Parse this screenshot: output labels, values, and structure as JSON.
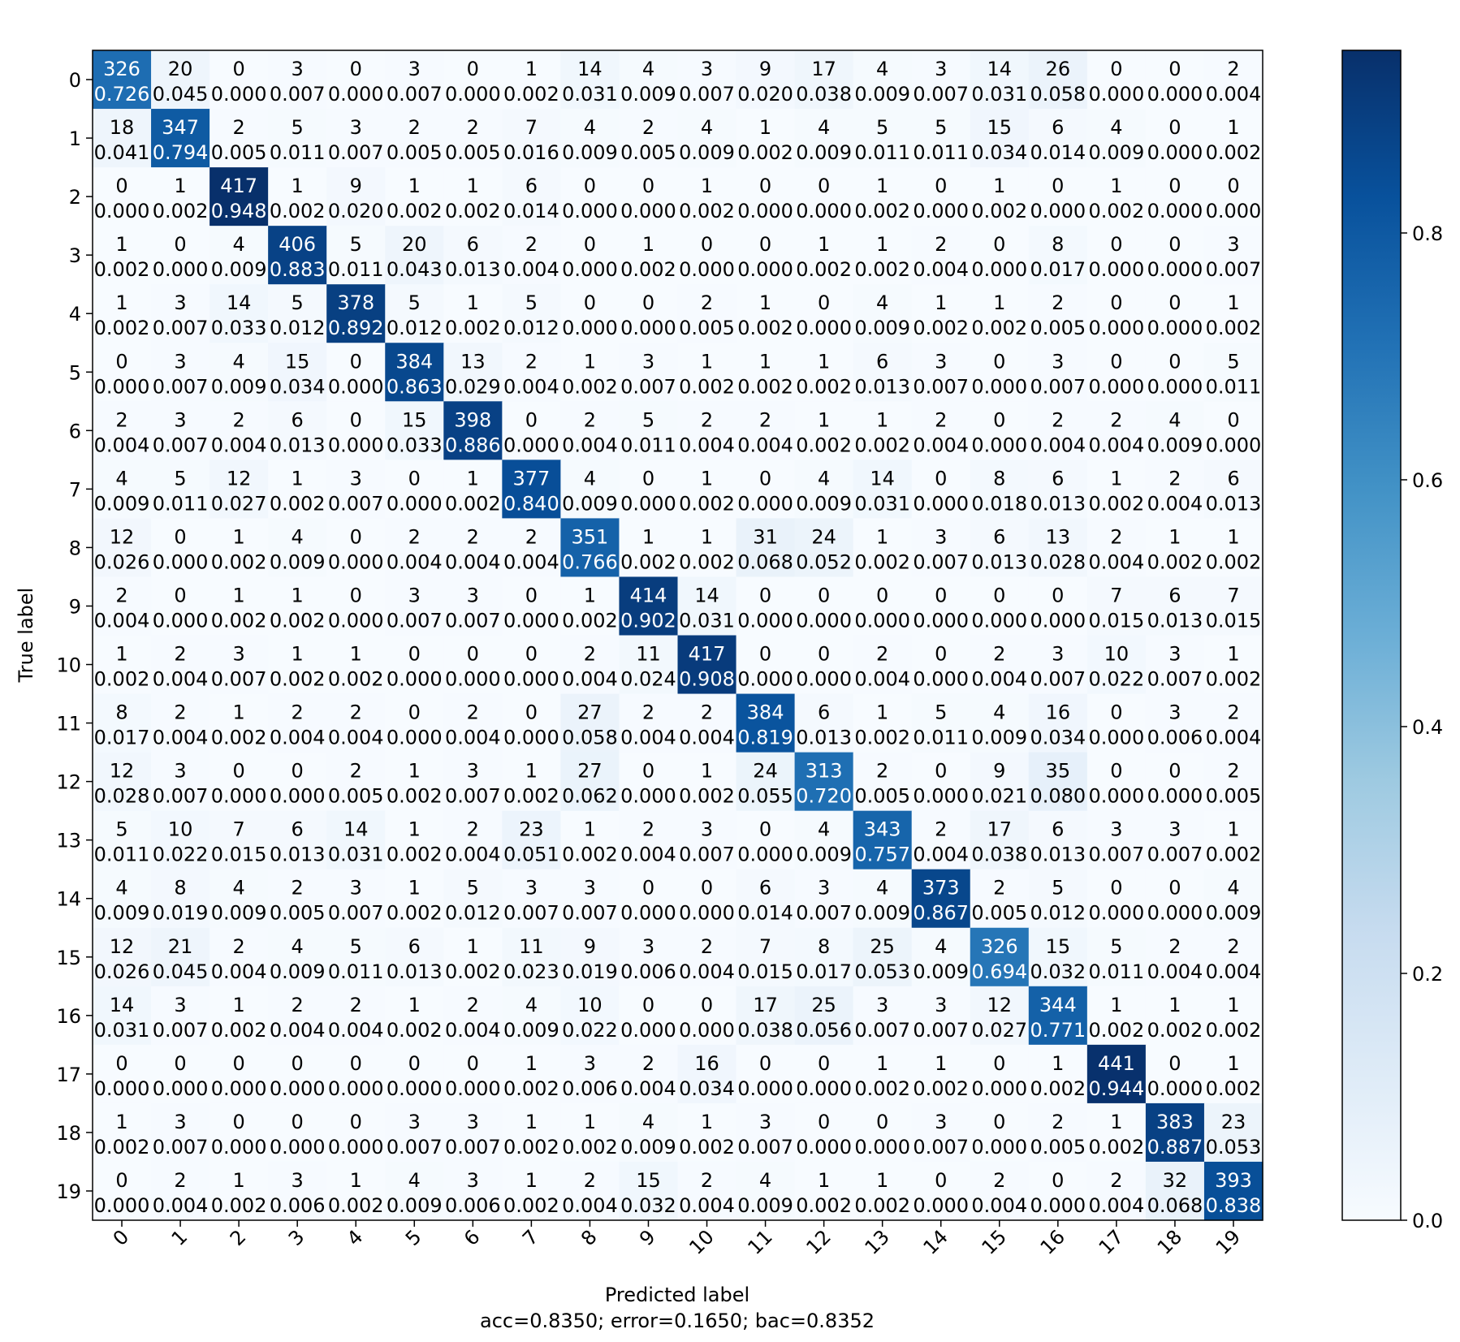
{
  "chart_data": {
    "type": "heatmap",
    "xlabel": "Predicted label",
    "ylabel": "True label",
    "caption": "acc=0.8350; error=0.1650; bac=0.8352",
    "x_categories": [
      "0",
      "1",
      "2",
      "3",
      "4",
      "5",
      "6",
      "7",
      "8",
      "9",
      "10",
      "11",
      "12",
      "13",
      "14",
      "15",
      "16",
      "17",
      "18",
      "19"
    ],
    "y_categories": [
      "0",
      "1",
      "2",
      "3",
      "4",
      "5",
      "6",
      "7",
      "8",
      "9",
      "10",
      "11",
      "12",
      "13",
      "14",
      "15",
      "16",
      "17",
      "18",
      "19"
    ],
    "counts": [
      [
        326,
        20,
        0,
        3,
        0,
        3,
        0,
        1,
        14,
        4,
        3,
        9,
        17,
        4,
        3,
        14,
        26,
        0,
        0,
        2
      ],
      [
        18,
        347,
        2,
        5,
        3,
        2,
        2,
        7,
        4,
        2,
        4,
        1,
        4,
        5,
        5,
        15,
        6,
        4,
        0,
        1
      ],
      [
        0,
        1,
        417,
        1,
        9,
        1,
        1,
        6,
        0,
        0,
        1,
        0,
        0,
        1,
        0,
        1,
        0,
        1,
        0,
        0
      ],
      [
        1,
        0,
        4,
        406,
        5,
        20,
        6,
        2,
        0,
        1,
        0,
        0,
        1,
        1,
        2,
        0,
        8,
        0,
        0,
        3
      ],
      [
        1,
        3,
        14,
        5,
        378,
        5,
        1,
        5,
        0,
        0,
        2,
        1,
        0,
        4,
        1,
        1,
        2,
        0,
        0,
        1
      ],
      [
        0,
        3,
        4,
        15,
        0,
        384,
        13,
        2,
        1,
        3,
        1,
        1,
        1,
        6,
        3,
        0,
        3,
        0,
        0,
        5
      ],
      [
        2,
        3,
        2,
        6,
        0,
        15,
        398,
        0,
        2,
        5,
        2,
        2,
        1,
        1,
        2,
        0,
        2,
        2,
        4,
        0
      ],
      [
        4,
        5,
        12,
        1,
        3,
        0,
        1,
        377,
        4,
        0,
        1,
        0,
        4,
        14,
        0,
        8,
        6,
        1,
        2,
        6
      ],
      [
        12,
        0,
        1,
        4,
        0,
        2,
        2,
        2,
        351,
        1,
        1,
        31,
        24,
        1,
        3,
        6,
        13,
        2,
        1,
        1
      ],
      [
        2,
        0,
        1,
        1,
        0,
        3,
        3,
        0,
        1,
        414,
        14,
        0,
        0,
        0,
        0,
        0,
        0,
        7,
        6,
        7
      ],
      [
        1,
        2,
        3,
        1,
        1,
        0,
        0,
        0,
        2,
        11,
        417,
        0,
        0,
        2,
        0,
        2,
        3,
        10,
        3,
        1
      ],
      [
        8,
        2,
        1,
        2,
        2,
        0,
        2,
        0,
        27,
        2,
        2,
        384,
        6,
        1,
        5,
        4,
        16,
        0,
        3,
        2
      ],
      [
        12,
        3,
        0,
        0,
        2,
        1,
        3,
        1,
        27,
        0,
        1,
        24,
        313,
        2,
        0,
        9,
        35,
        0,
        0,
        2
      ],
      [
        5,
        10,
        7,
        6,
        14,
        1,
        2,
        23,
        1,
        2,
        3,
        0,
        4,
        343,
        2,
        17,
        6,
        3,
        3,
        1
      ],
      [
        4,
        8,
        4,
        2,
        3,
        1,
        5,
        3,
        3,
        0,
        0,
        6,
        3,
        4,
        373,
        2,
        5,
        0,
        0,
        4
      ],
      [
        12,
        21,
        2,
        4,
        5,
        6,
        1,
        11,
        9,
        3,
        2,
        7,
        8,
        25,
        4,
        326,
        15,
        5,
        2,
        2
      ],
      [
        14,
        3,
        1,
        2,
        2,
        1,
        2,
        4,
        10,
        0,
        0,
        17,
        25,
        3,
        3,
        12,
        344,
        1,
        1,
        1
      ],
      [
        0,
        0,
        0,
        0,
        0,
        0,
        0,
        1,
        3,
        2,
        16,
        0,
        0,
        1,
        1,
        0,
        1,
        441,
        0,
        1
      ],
      [
        1,
        3,
        0,
        0,
        0,
        3,
        3,
        1,
        1,
        4,
        1,
        3,
        0,
        0,
        3,
        0,
        2,
        1,
        383,
        23
      ],
      [
        0,
        2,
        1,
        3,
        1,
        4,
        3,
        1,
        2,
        15,
        2,
        4,
        1,
        1,
        0,
        2,
        0,
        2,
        32,
        393
      ]
    ],
    "normalized": [
      [
        "0.726",
        "0.045",
        "0.000",
        "0.007",
        "0.000",
        "0.007",
        "0.000",
        "0.002",
        "0.031",
        "0.009",
        "0.007",
        "0.020",
        "0.038",
        "0.009",
        "0.007",
        "0.031",
        "0.058",
        "0.000",
        "0.000",
        "0.004"
      ],
      [
        "0.041",
        "0.794",
        "0.005",
        "0.011",
        "0.007",
        "0.005",
        "0.005",
        "0.016",
        "0.009",
        "0.005",
        "0.009",
        "0.002",
        "0.009",
        "0.011",
        "0.011",
        "0.034",
        "0.014",
        "0.009",
        "0.000",
        "0.002"
      ],
      [
        "0.000",
        "0.002",
        "0.948",
        "0.002",
        "0.020",
        "0.002",
        "0.002",
        "0.014",
        "0.000",
        "0.000",
        "0.002",
        "0.000",
        "0.000",
        "0.002",
        "0.000",
        "0.002",
        "0.000",
        "0.002",
        "0.000",
        "0.000"
      ],
      [
        "0.002",
        "0.000",
        "0.009",
        "0.883",
        "0.011",
        "0.043",
        "0.013",
        "0.004",
        "0.000",
        "0.002",
        "0.000",
        "0.000",
        "0.002",
        "0.002",
        "0.004",
        "0.000",
        "0.017",
        "0.000",
        "0.000",
        "0.007"
      ],
      [
        "0.002",
        "0.007",
        "0.033",
        "0.012",
        "0.892",
        "0.012",
        "0.002",
        "0.012",
        "0.000",
        "0.000",
        "0.005",
        "0.002",
        "0.000",
        "0.009",
        "0.002",
        "0.002",
        "0.005",
        "0.000",
        "0.000",
        "0.002"
      ],
      [
        "0.000",
        "0.007",
        "0.009",
        "0.034",
        "0.000",
        "0.863",
        "0.029",
        "0.004",
        "0.002",
        "0.007",
        "0.002",
        "0.002",
        "0.002",
        "0.013",
        "0.007",
        "0.000",
        "0.007",
        "0.000",
        "0.000",
        "0.011"
      ],
      [
        "0.004",
        "0.007",
        "0.004",
        "0.013",
        "0.000",
        "0.033",
        "0.886",
        "0.000",
        "0.004",
        "0.011",
        "0.004",
        "0.004",
        "0.002",
        "0.002",
        "0.004",
        "0.000",
        "0.004",
        "0.004",
        "0.009",
        "0.000"
      ],
      [
        "0.009",
        "0.011",
        "0.027",
        "0.002",
        "0.007",
        "0.000",
        "0.002",
        "0.840",
        "0.009",
        "0.000",
        "0.002",
        "0.000",
        "0.009",
        "0.031",
        "0.000",
        "0.018",
        "0.013",
        "0.002",
        "0.004",
        "0.013"
      ],
      [
        "0.026",
        "0.000",
        "0.002",
        "0.009",
        "0.000",
        "0.004",
        "0.004",
        "0.004",
        "0.766",
        "0.002",
        "0.002",
        "0.068",
        "0.052",
        "0.002",
        "0.007",
        "0.013",
        "0.028",
        "0.004",
        "0.002",
        "0.002"
      ],
      [
        "0.004",
        "0.000",
        "0.002",
        "0.002",
        "0.000",
        "0.007",
        "0.007",
        "0.000",
        "0.002",
        "0.902",
        "0.031",
        "0.000",
        "0.000",
        "0.000",
        "0.000",
        "0.000",
        "0.000",
        "0.015",
        "0.013",
        "0.015"
      ],
      [
        "0.002",
        "0.004",
        "0.007",
        "0.002",
        "0.002",
        "0.000",
        "0.000",
        "0.000",
        "0.004",
        "0.024",
        "0.908",
        "0.000",
        "0.000",
        "0.004",
        "0.000",
        "0.004",
        "0.007",
        "0.022",
        "0.007",
        "0.002"
      ],
      [
        "0.017",
        "0.004",
        "0.002",
        "0.004",
        "0.004",
        "0.000",
        "0.004",
        "0.000",
        "0.058",
        "0.004",
        "0.004",
        "0.819",
        "0.013",
        "0.002",
        "0.011",
        "0.009",
        "0.034",
        "0.000",
        "0.006",
        "0.004"
      ],
      [
        "0.028",
        "0.007",
        "0.000",
        "0.000",
        "0.005",
        "0.002",
        "0.007",
        "0.002",
        "0.062",
        "0.000",
        "0.002",
        "0.055",
        "0.720",
        "0.005",
        "0.000",
        "0.021",
        "0.080",
        "0.000",
        "0.000",
        "0.005"
      ],
      [
        "0.011",
        "0.022",
        "0.015",
        "0.013",
        "0.031",
        "0.002",
        "0.004",
        "0.051",
        "0.002",
        "0.004",
        "0.007",
        "0.000",
        "0.009",
        "0.757",
        "0.004",
        "0.038",
        "0.013",
        "0.007",
        "0.007",
        "0.002"
      ],
      [
        "0.009",
        "0.019",
        "0.009",
        "0.005",
        "0.007",
        "0.002",
        "0.012",
        "0.007",
        "0.007",
        "0.000",
        "0.000",
        "0.014",
        "0.007",
        "0.009",
        "0.867",
        "0.005",
        "0.012",
        "0.000",
        "0.000",
        "0.009"
      ],
      [
        "0.026",
        "0.045",
        "0.004",
        "0.009",
        "0.011",
        "0.013",
        "0.002",
        "0.023",
        "0.019",
        "0.006",
        "0.004",
        "0.015",
        "0.017",
        "0.053",
        "0.009",
        "0.694",
        "0.032",
        "0.011",
        "0.004",
        "0.004"
      ],
      [
        "0.031",
        "0.007",
        "0.002",
        "0.004",
        "0.004",
        "0.002",
        "0.004",
        "0.009",
        "0.022",
        "0.000",
        "0.000",
        "0.038",
        "0.056",
        "0.007",
        "0.007",
        "0.027",
        "0.771",
        "0.002",
        "0.002",
        "0.002"
      ],
      [
        "0.000",
        "0.000",
        "0.000",
        "0.000",
        "0.000",
        "0.000",
        "0.000",
        "0.002",
        "0.006",
        "0.004",
        "0.034",
        "0.000",
        "0.000",
        "0.002",
        "0.002",
        "0.000",
        "0.002",
        "0.944",
        "0.000",
        "0.002"
      ],
      [
        "0.002",
        "0.007",
        "0.000",
        "0.000",
        "0.000",
        "0.007",
        "0.007",
        "0.002",
        "0.002",
        "0.009",
        "0.002",
        "0.007",
        "0.000",
        "0.000",
        "0.007",
        "0.000",
        "0.005",
        "0.002",
        "0.887",
        "0.053"
      ],
      [
        "0.000",
        "0.004",
        "0.002",
        "0.006",
        "0.002",
        "0.009",
        "0.006",
        "0.002",
        "0.004",
        "0.032",
        "0.004",
        "0.009",
        "0.002",
        "0.002",
        "0.000",
        "0.004",
        "0.000",
        "0.004",
        "0.068",
        "0.838"
      ]
    ],
    "colorbar": {
      "ticks": [
        "0.0",
        "0.2",
        "0.4",
        "0.6",
        "0.8"
      ],
      "range": [
        0,
        0.948
      ],
      "colormap": "Blues",
      "low_color": "#f7fbff",
      "high_color": "#08306b"
    },
    "grid": false,
    "legend": "colorbar-right"
  }
}
